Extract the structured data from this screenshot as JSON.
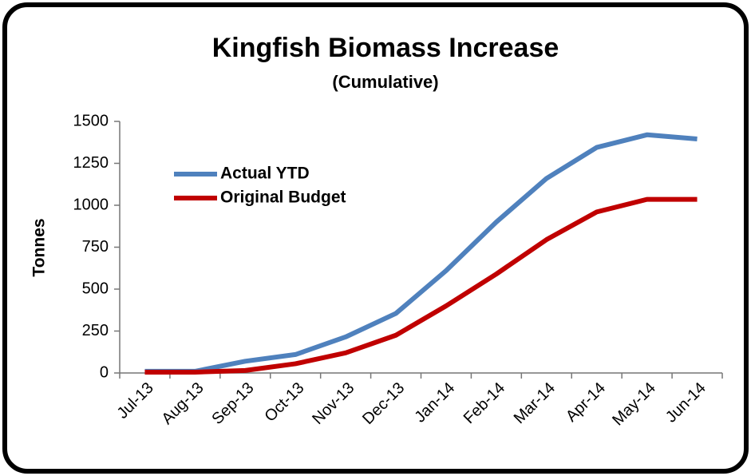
{
  "chart_data": {
    "type": "line",
    "title": "Kingfish Biomass Increase",
    "subtitle": "(Cumulative)",
    "y_label": "Tonnes",
    "categories": [
      "Jul-13",
      "Aug-13",
      "Sep-13",
      "Oct-13",
      "Nov-13",
      "Dec-13",
      "Jan-14",
      "Feb-14",
      "Mar-14",
      "Apr-14",
      "May-14",
      "Jun-14"
    ],
    "series": [
      {
        "name": "Actual YTD",
        "color": "#4f81bd",
        "values": [
          10,
          10,
          70,
          110,
          215,
          355,
          610,
          900,
          1160,
          1345,
          1420,
          1395
        ]
      },
      {
        "name": "Original Budget",
        "color": "#c00000",
        "values": [
          5,
          5,
          15,
          55,
          120,
          225,
          400,
          590,
          795,
          960,
          1035,
          1035
        ]
      }
    ],
    "ylim": [
      0,
      1500
    ],
    "yticks": [
      0,
      250,
      500,
      750,
      1000,
      1250,
      1500
    ],
    "grid": false,
    "legend": "upper left"
  }
}
